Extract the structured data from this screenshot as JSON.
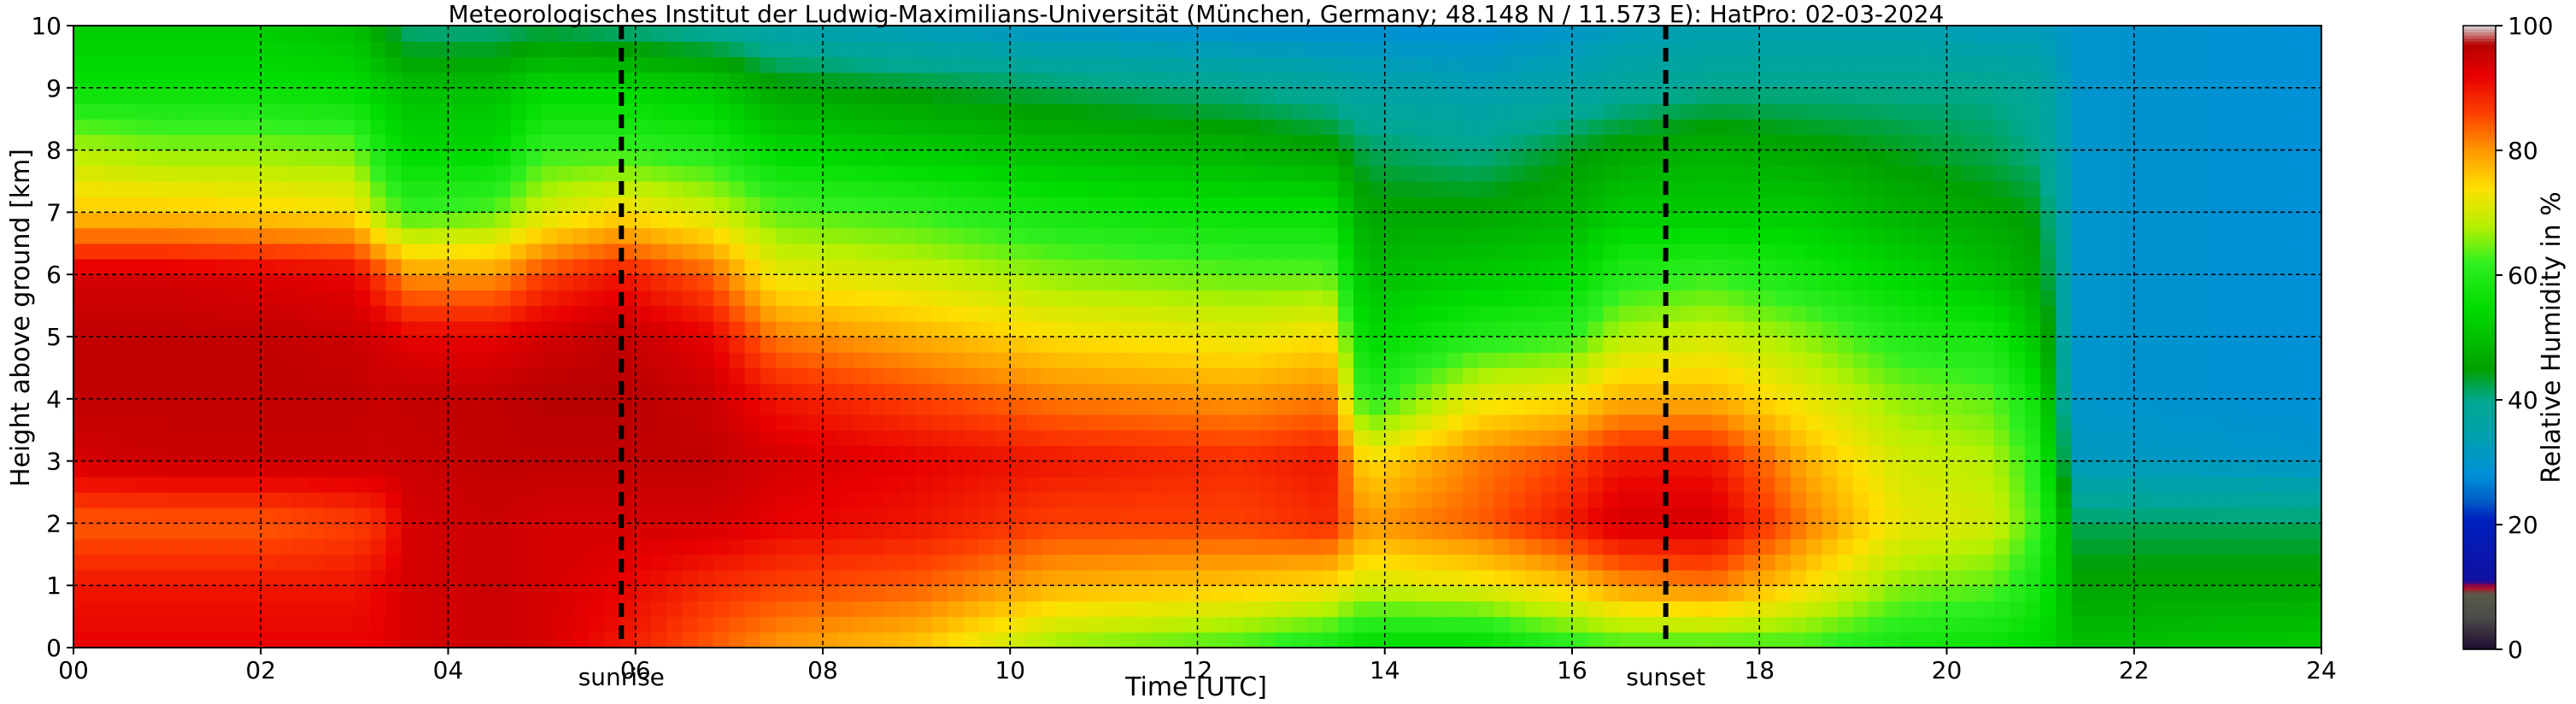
{
  "chart_data": {
    "type": "heatmap",
    "title": "Meteorologisches Institut der Ludwig-Maximilians-Universität (München, Germany; 48.148 N / 11.573 E):    HatPro: 02-03-2024",
    "xlabel": "Time [UTC]",
    "ylabel": "Height above ground [km]",
    "colorbar_label": "Relative Humidity in %",
    "xlim": [
      0,
      24
    ],
    "ylim": [
      0,
      10
    ],
    "clim": [
      0,
      100
    ],
    "x_ticks": [
      "00",
      "02",
      "04",
      "06",
      "08",
      "10",
      "12",
      "14",
      "16",
      "18",
      "20",
      "22",
      "24"
    ],
    "y_ticks": [
      "0",
      "1",
      "2",
      "3",
      "4",
      "5",
      "6",
      "7",
      "8",
      "9",
      "10"
    ],
    "colorbar_ticks": [
      "0",
      "20",
      "40",
      "60",
      "80",
      "100"
    ],
    "grid": true,
    "events": [
      {
        "label": "sunrise",
        "time": 5.85
      },
      {
        "label": "sunset",
        "time": 17.0
      }
    ],
    "colormap": [
      {
        "v": 0,
        "color": "#1e0a2e"
      },
      {
        "v": 5,
        "color": "#4a4a4a"
      },
      {
        "v": 9,
        "color": "#5a5a4a"
      },
      {
        "v": 10,
        "color": "#c00020"
      },
      {
        "v": 11,
        "color": "#1010a0"
      },
      {
        "v": 21,
        "color": "#0020c0"
      },
      {
        "v": 24,
        "color": "#0060c8"
      },
      {
        "v": 28,
        "color": "#0090d8"
      },
      {
        "v": 34,
        "color": "#00a0b0"
      },
      {
        "v": 40,
        "color": "#00a890"
      },
      {
        "v": 45,
        "color": "#00a000"
      },
      {
        "v": 55,
        "color": "#00dd00"
      },
      {
        "v": 62,
        "color": "#30f020"
      },
      {
        "v": 68,
        "color": "#b8f000"
      },
      {
        "v": 74,
        "color": "#ffe000"
      },
      {
        "v": 80,
        "color": "#ff9800"
      },
      {
        "v": 86,
        "color": "#ff4000"
      },
      {
        "v": 92,
        "color": "#e80000"
      },
      {
        "v": 97,
        "color": "#b80000"
      },
      {
        "v": 100,
        "color": "#d8d8d8"
      }
    ],
    "series": [
      {
        "time": 0.0,
        "rh": [
          92,
          90,
          84,
          94,
          96,
          96,
          94,
          76,
          68,
          56,
          52
        ]
      },
      {
        "time": 1.0,
        "rh": [
          92,
          90,
          84,
          95,
          96,
          96,
          94,
          76,
          66,
          56,
          52
        ]
      },
      {
        "time": 2.0,
        "rh": [
          92,
          90,
          84,
          95,
          96,
          96,
          93,
          75,
          66,
          56,
          52
        ]
      },
      {
        "time": 3.0,
        "rh": [
          92,
          90,
          86,
          95,
          96,
          95,
          92,
          74,
          65,
          55,
          50
        ]
      },
      {
        "time": 3.3,
        "rh": [
          92,
          92,
          88,
          95,
          95,
          94,
          86,
          66,
          58,
          52,
          45
        ]
      },
      {
        "time": 3.6,
        "rh": [
          94,
          94,
          94,
          95,
          96,
          92,
          80,
          62,
          54,
          50,
          40
        ]
      },
      {
        "time": 4.5,
        "rh": [
          95,
          95,
          95,
          96,
          96,
          92,
          80,
          64,
          54,
          50,
          40
        ]
      },
      {
        "time": 5.0,
        "rh": [
          94,
          94,
          94,
          96,
          97,
          94,
          86,
          70,
          62,
          54,
          42
        ]
      },
      {
        "time": 5.8,
        "rh": [
          90,
          92,
          94,
          96,
          97,
          96,
          90,
          74,
          62,
          54,
          40
        ]
      },
      {
        "time": 6.8,
        "rh": [
          84,
          88,
          94,
          96,
          95,
          92,
          84,
          70,
          60,
          52,
          38
        ]
      },
      {
        "time": 7.5,
        "rh": [
          80,
          86,
          92,
          94,
          90,
          82,
          72,
          64,
          54,
          46,
          35
        ]
      },
      {
        "time": 9.0,
        "rh": [
          76,
          84,
          90,
          92,
          86,
          78,
          70,
          62,
          52,
          44,
          32
        ]
      },
      {
        "time": 10.5,
        "rh": [
          66,
          78,
          86,
          90,
          82,
          74,
          66,
          58,
          50,
          42,
          30
        ]
      },
      {
        "time": 12.5,
        "rh": [
          62,
          76,
          86,
          88,
          80,
          72,
          64,
          56,
          48,
          40,
          28
        ]
      },
      {
        "time": 13.4,
        "rh": [
          58,
          74,
          88,
          90,
          82,
          74,
          64,
          56,
          46,
          38,
          28
        ]
      },
      {
        "time": 13.8,
        "rh": [
          54,
          70,
          80,
          74,
          60,
          54,
          50,
          46,
          42,
          36,
          28
        ]
      },
      {
        "time": 15.0,
        "rh": [
          54,
          72,
          84,
          82,
          72,
          60,
          52,
          46,
          40,
          34,
          28
        ]
      },
      {
        "time": 16.0,
        "rh": [
          60,
          76,
          90,
          86,
          74,
          62,
          54,
          48,
          44,
          36,
          30
        ]
      },
      {
        "time": 16.5,
        "rh": [
          62,
          80,
          94,
          90,
          78,
          68,
          60,
          52,
          46,
          38,
          32
        ]
      },
      {
        "time": 17.5,
        "rh": [
          62,
          82,
          94,
          90,
          78,
          70,
          62,
          52,
          48,
          40,
          34
        ]
      },
      {
        "time": 18.5,
        "rh": [
          62,
          74,
          82,
          78,
          72,
          66,
          58,
          52,
          46,
          40,
          34
        ]
      },
      {
        "time": 19.5,
        "rh": [
          58,
          66,
          72,
          70,
          66,
          60,
          54,
          48,
          44,
          40,
          34
        ]
      },
      {
        "time": 20.5,
        "rh": [
          56,
          64,
          70,
          68,
          64,
          58,
          50,
          46,
          42,
          40,
          32
        ]
      },
      {
        "time": 21.0,
        "rh": [
          54,
          58,
          62,
          60,
          56,
          50,
          46,
          44,
          40,
          38,
          32
        ]
      },
      {
        "time": 21.4,
        "rh": [
          50,
          46,
          42,
          32,
          30,
          30,
          30,
          30,
          30,
          30,
          30
        ]
      },
      {
        "time": 24.0,
        "rh": [
          52,
          46,
          42,
          30,
          28,
          28,
          28,
          28,
          28,
          28,
          28
        ]
      }
    ]
  }
}
